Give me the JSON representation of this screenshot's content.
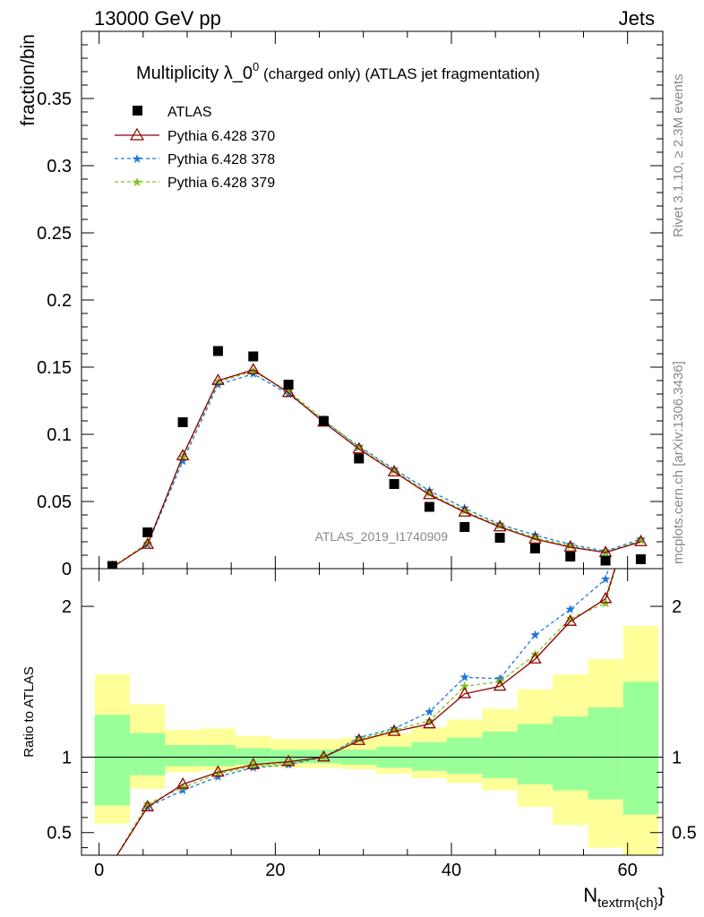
{
  "header": {
    "left": "13000 GeV pp",
    "right": "Jets"
  },
  "side_labels": {
    "top": "Rivet 3.1.10, ≥ 2.3M events",
    "bottom": "mcplots.cern.ch [arXiv:1306.3436]"
  },
  "colors": {
    "atlas": "#000000",
    "p370": "#8b0000",
    "p378": "#1e78dc",
    "p379": "#7fc31c",
    "band_inner": "#99ff99",
    "band_outer": "#ffff99"
  },
  "chart_data": [
    {
      "type": "scatter",
      "title_main": "Multiplicity λ_0",
      "title_sup": "0",
      "title_rest": " (charged only) (ATLAS jet fragmentation)",
      "watermark": "ATLAS_2019_I1740909",
      "ylabel": "fraction/bin",
      "xlim": [
        -2,
        64
      ],
      "ylim": [
        0,
        0.4
      ],
      "yticks": [
        0,
        0.05,
        0.1,
        0.15,
        0.2,
        0.25,
        0.3,
        0.35
      ],
      "ytick_labels": [
        "0",
        "0.05",
        "0.1",
        "0.15",
        "0.2",
        "0.25",
        "0.3",
        "0.35"
      ],
      "x": [
        1.5,
        5.5,
        9.5,
        13.5,
        17.5,
        21.5,
        25.5,
        29.5,
        33.5,
        37.5,
        41.5,
        45.5,
        49.5,
        53.5,
        57.5,
        61.5
      ],
      "series": [
        {
          "name": "ATLAS",
          "marker": "square",
          "values": [
            0.002,
            0.027,
            0.109,
            0.162,
            0.158,
            0.137,
            0.11,
            0.082,
            0.063,
            0.046,
            0.031,
            0.023,
            0.015,
            0.009,
            0.006,
            0.007
          ]
        },
        {
          "name": "Pythia 6.428 370",
          "marker": "triangle",
          "style": "solid",
          "values": [
            0.001,
            0.018,
            0.084,
            0.14,
            0.148,
            0.131,
            0.109,
            0.089,
            0.072,
            0.055,
            0.042,
            0.031,
            0.022,
            0.016,
            0.012,
            0.02
          ]
        },
        {
          "name": "Pythia 6.428 378",
          "marker": "star",
          "style": "dashed",
          "values": [
            0.001,
            0.018,
            0.08,
            0.137,
            0.145,
            0.13,
            0.11,
            0.091,
            0.074,
            0.058,
            0.045,
            0.033,
            0.025,
            0.018,
            0.013,
            0.022
          ]
        },
        {
          "name": "Pythia 6.428 379",
          "marker": "star",
          "style": "dashed",
          "values": [
            0.001,
            0.019,
            0.083,
            0.139,
            0.147,
            0.132,
            0.111,
            0.09,
            0.073,
            0.056,
            0.043,
            0.032,
            0.023,
            0.017,
            0.012,
            0.021
          ]
        }
      ]
    },
    {
      "type": "line",
      "ylabel": "Ratio to ATLAS",
      "xlabel": "N",
      "xlabel_sub": "textrm{ch}",
      "xlim": [
        -2,
        64
      ],
      "ylim": [
        0.35,
        2.25
      ],
      "xticks": [
        0,
        20,
        40,
        60
      ],
      "xtick_labels": [
        "0",
        "20",
        "40",
        "60"
      ],
      "yticks": [
        0.5,
        1,
        2
      ],
      "ytick_labels": [
        "0.5",
        "1",
        "2"
      ],
      "bins": [
        [
          -0.5,
          3.5
        ],
        [
          3.5,
          7.5
        ],
        [
          7.5,
          11.5
        ],
        [
          11.5,
          15.5
        ],
        [
          15.5,
          19.5
        ],
        [
          19.5,
          23.5
        ],
        [
          23.5,
          27.5
        ],
        [
          27.5,
          31.5
        ],
        [
          31.5,
          35.5
        ],
        [
          35.5,
          39.5
        ],
        [
          39.5,
          43.5
        ],
        [
          43.5,
          47.5
        ],
        [
          47.5,
          51.5
        ],
        [
          51.5,
          55.5
        ],
        [
          55.5,
          59.5
        ],
        [
          59.5,
          63.5
        ]
      ],
      "band_inner": [
        [
          0.68,
          1.28
        ],
        [
          0.88,
          1.16
        ],
        [
          0.94,
          1.08
        ],
        [
          0.94,
          1.08
        ],
        [
          0.95,
          1.06
        ],
        [
          0.96,
          1.05
        ],
        [
          0.96,
          1.05
        ],
        [
          0.95,
          1.05
        ],
        [
          0.93,
          1.07
        ],
        [
          0.91,
          1.1
        ],
        [
          0.89,
          1.13
        ],
        [
          0.86,
          1.17
        ],
        [
          0.82,
          1.22
        ],
        [
          0.78,
          1.27
        ],
        [
          0.72,
          1.33
        ],
        [
          0.62,
          1.5
        ]
      ],
      "band_outer": [
        [
          0.56,
          1.55
        ],
        [
          0.79,
          1.35
        ],
        [
          0.9,
          1.18
        ],
        [
          0.91,
          1.19
        ],
        [
          0.93,
          1.14
        ],
        [
          0.93,
          1.12
        ],
        [
          0.93,
          1.12
        ],
        [
          0.92,
          1.13
        ],
        [
          0.89,
          1.16
        ],
        [
          0.86,
          1.2
        ],
        [
          0.83,
          1.25
        ],
        [
          0.78,
          1.32
        ],
        [
          0.67,
          1.45
        ],
        [
          0.55,
          1.55
        ],
        [
          0.4,
          1.65
        ],
        [
          0.35,
          1.87
        ]
      ],
      "x": [
        1.5,
        5.5,
        9.5,
        13.5,
        17.5,
        21.5,
        25.5,
        29.5,
        33.5,
        37.5,
        41.5,
        45.5,
        49.5,
        53.5,
        57.5,
        61.5
      ],
      "series": [
        {
          "name": "Pythia 6.428 370",
          "values": [
            0.3,
            0.67,
            0.82,
            0.9,
            0.95,
            0.97,
            1.0,
            1.11,
            1.17,
            1.22,
            1.42,
            1.47,
            1.65,
            1.9,
            2.05,
            2.8
          ]
        },
        {
          "name": "Pythia 6.428 378",
          "values": [
            0.3,
            0.67,
            0.78,
            0.87,
            0.93,
            0.95,
            1.0,
            1.13,
            1.19,
            1.3,
            1.53,
            1.52,
            1.81,
            1.98,
            2.18,
            3.0
          ]
        },
        {
          "name": "Pythia 6.428 379",
          "values": [
            0.3,
            0.69,
            0.8,
            0.89,
            0.94,
            0.96,
            1.0,
            1.12,
            1.18,
            1.24,
            1.47,
            1.5,
            1.68,
            1.92,
            2.02,
            2.85
          ]
        }
      ]
    }
  ]
}
